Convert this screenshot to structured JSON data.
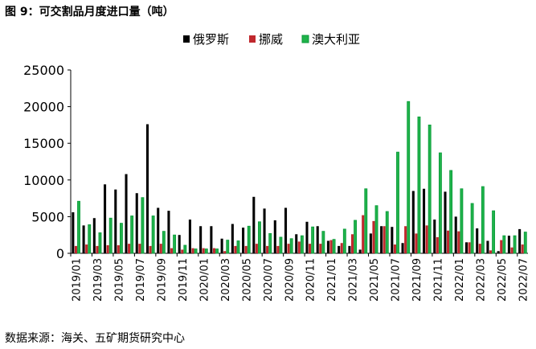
{
  "chart_data": {
    "type": "bar",
    "title": "图 9：可交割品月度进口量（吨）",
    "source": "数据来源：海关、五矿期货研究中心",
    "ylim": [
      0,
      25000
    ],
    "yticks": [
      0,
      5000,
      10000,
      15000,
      20000,
      25000
    ],
    "legend_position": "top",
    "categories": [
      "2019/01",
      "2019/02",
      "2019/03",
      "2019/04",
      "2019/05",
      "2019/06",
      "2019/07",
      "2019/08",
      "2019/09",
      "2019/10",
      "2019/11",
      "2019/12",
      "2020/01",
      "2020/02",
      "2020/03",
      "2020/04",
      "2020/05",
      "2020/06",
      "2020/07",
      "2020/08",
      "2020/09",
      "2020/10",
      "2020/11",
      "2020/12",
      "2021/01",
      "2021/02",
      "2021/03",
      "2021/04",
      "2021/05",
      "2021/06",
      "2021/07",
      "2021/08",
      "2021/09",
      "2021/10",
      "2021/11",
      "2021/12",
      "2022/01",
      "2022/02",
      "2022/03",
      "2022/04",
      "2022/05",
      "2022/06",
      "2022/07"
    ],
    "series": [
      {
        "name": "俄罗斯",
        "color": "#000000",
        "values": [
          5600,
          3800,
          4800,
          9400,
          8700,
          10800,
          8200,
          17600,
          6200,
          5800,
          2500,
          4600,
          3700,
          3700,
          2000,
          4000,
          3500,
          7700,
          6100,
          4500,
          6200,
          2600,
          4300,
          3700,
          1700,
          1000,
          1000,
          500,
          2700,
          3700,
          3600,
          1400,
          8500,
          8800,
          4600,
          8400,
          5000,
          1500,
          3400,
          1700,
          300,
          2400,
          3300
        ]
      },
      {
        "name": "挪威",
        "color": "#c0282d",
        "values": [
          1000,
          1200,
          1000,
          1100,
          1100,
          1300,
          1300,
          1000,
          1300,
          700,
          500,
          700,
          700,
          700,
          300,
          1000,
          1000,
          1300,
          1000,
          1000,
          1300,
          1600,
          1300,
          1300,
          1800,
          1400,
          2600,
          5200,
          4400,
          3700,
          1200,
          3700,
          2700,
          3800,
          2200,
          3100,
          3000,
          1500,
          1300,
          400,
          1800,
          800,
          1200
        ]
      },
      {
        "name": "澳大利亚",
        "color": "#1fb34a",
        "values": [
          7100,
          3900,
          2800,
          4800,
          4100,
          5100,
          7600,
          5100,
          3000,
          2500,
          1100,
          600,
          600,
          600,
          1800,
          1700,
          3700,
          4300,
          2700,
          2200,
          2000,
          2400,
          3600,
          3000,
          1900,
          3300,
          4500,
          8800,
          6500,
          5700,
          13800,
          20700,
          18600,
          17500,
          13700,
          11300,
          8800,
          6800,
          9100,
          5800,
          2400,
          2400,
          2900
        ]
      }
    ]
  }
}
